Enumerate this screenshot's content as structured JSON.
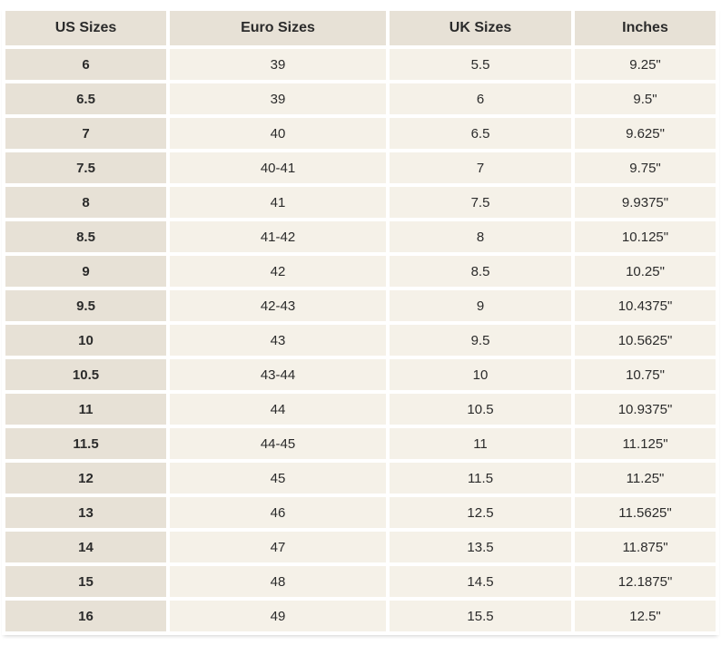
{
  "chart_data": {
    "type": "table",
    "headers": [
      "US Sizes",
      "Euro Sizes",
      "UK Sizes",
      "Inches"
    ],
    "rows": [
      [
        "6",
        "39",
        "5.5",
        "9.25\""
      ],
      [
        "6.5",
        "39",
        "6",
        "9.5\""
      ],
      [
        "7",
        "40",
        "6.5",
        "9.625\""
      ],
      [
        "7.5",
        "40-41",
        "7",
        "9.75\""
      ],
      [
        "8",
        "41",
        "7.5",
        "9.9375\""
      ],
      [
        "8.5",
        "41-42",
        "8",
        "10.125\""
      ],
      [
        "9",
        "42",
        "8.5",
        "10.25\""
      ],
      [
        "9.5",
        "42-43",
        "9",
        "10.4375\""
      ],
      [
        "10",
        "43",
        "9.5",
        "10.5625\""
      ],
      [
        "10.5",
        "43-44",
        "10",
        "10.75\""
      ],
      [
        "11",
        "44",
        "10.5",
        "10.9375\""
      ],
      [
        "11.5",
        "44-45",
        "11",
        "11.125\""
      ],
      [
        "12",
        "45",
        "11.5",
        "11.25\""
      ],
      [
        "13",
        "46",
        "12.5",
        "11.5625\""
      ],
      [
        "14",
        "47",
        "13.5",
        "11.875\""
      ],
      [
        "15",
        "48",
        "14.5",
        "12.1875\""
      ],
      [
        "16",
        "49",
        "15.5",
        "12.5\""
      ]
    ]
  },
  "colors": {
    "header_bg": "#e7e1d6",
    "first_column_bg": "#e7e1d6",
    "cell_bg": "#f5f1e8",
    "background": "#ffffff",
    "text": "#2b2b2b"
  }
}
